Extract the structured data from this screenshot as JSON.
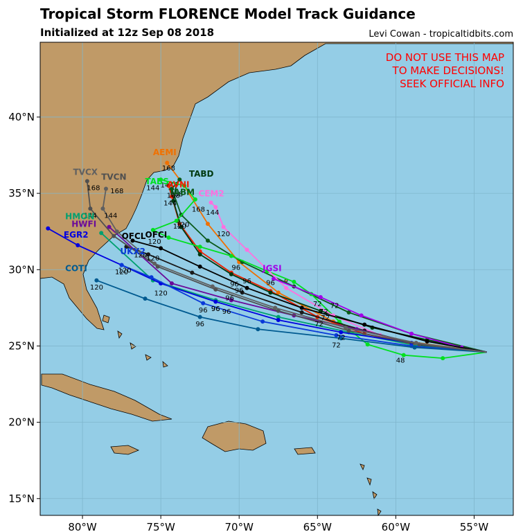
{
  "header": {
    "title": "Tropical Storm FLORENCE Model Track Guidance",
    "subtitle": "Initialized at 12z Sep 08 2018",
    "credit": "Levi Cowan - tropicaltidbits.com"
  },
  "warning": [
    "DO NOT USE THIS MAP",
    "TO MAKE DECISIONS!",
    "SEEK OFFICIAL INFO"
  ],
  "axes": {
    "lat_labels": [
      "40°N",
      "35°N",
      "30°N",
      "25°N",
      "20°N",
      "15°N"
    ],
    "lon_labels": [
      "80°W",
      "75°W",
      "70°W",
      "65°W",
      "60°W",
      "55°W"
    ]
  },
  "colors": {
    "ocean": "#94cde6",
    "land": "#c09a67",
    "grid": "#7fb6cc",
    "warning": "#ff0000"
  },
  "chart_data": {
    "type": "map-tracks",
    "lon_range": [
      -82.7,
      -52.5
    ],
    "lat_range": [
      13.9,
      44.9
    ],
    "grid": true,
    "tracks": [
      {
        "name": "AEMI",
        "color": "#f07000",
        "points": [
          [
            -54.2,
            24.6
          ],
          [
            -60,
            25.4
          ],
          [
            -64,
            26.6
          ],
          [
            -67.5,
            28.5
          ],
          [
            -70,
            30.5
          ],
          [
            -72,
            33.0
          ],
          [
            -73.5,
            35.5
          ],
          [
            -74.6,
            37.0
          ]
        ],
        "hour_labels": [
          [
            "168",
            -74.5,
            36.5
          ]
        ]
      },
      {
        "name": "AVNI",
        "color": "#ee2000",
        "points": [
          [
            -54.2,
            24.6
          ],
          [
            -58.5,
            25.0
          ],
          [
            -62,
            25.8
          ],
          [
            -65,
            26.9
          ],
          [
            -68,
            28.6
          ],
          [
            -70.5,
            29.8
          ],
          [
            -72.5,
            31.2
          ],
          [
            -73.8,
            33.0
          ],
          [
            -74.3,
            34.8
          ],
          [
            -74.5,
            35.5
          ]
        ],
        "hour_labels": [
          [
            "72",
            -64.6,
            27.1
          ],
          [
            "96",
            -70.3,
            28.9
          ],
          [
            "120",
            -73.8,
            32.7
          ],
          [
            "144",
            -74.4,
            34.2
          ],
          [
            "168",
            -74.2,
            34.7
          ]
        ]
      },
      {
        "name": "TABD",
        "color": "#003a10",
        "points": [
          [
            -54.2,
            24.6
          ],
          [
            -58.0,
            25.4
          ],
          [
            -61.5,
            26.2
          ],
          [
            -64.8,
            27.3
          ],
          [
            -68.0,
            28.5
          ],
          [
            -70.5,
            29.7
          ],
          [
            -72.5,
            31.0
          ],
          [
            -73.7,
            32.8
          ],
          [
            -74.2,
            34.5
          ],
          [
            -74.0,
            35.6
          ]
        ],
        "hour_labels": [
          [
            "72",
            -63.9,
            27.5
          ],
          [
            "96",
            -69.5,
            29.1
          ],
          [
            "120",
            -73.6,
            32.8
          ],
          [
            "168",
            -74.0,
            34.8
          ]
        ]
      },
      {
        "name": "TABM",
        "color": "#0a5a1a",
        "points": [
          [
            -54.2,
            24.6
          ],
          [
            -59,
            25.8
          ],
          [
            -63,
            27.2
          ],
          [
            -66.5,
            28.9
          ],
          [
            -69.8,
            30.5
          ],
          [
            -72.0,
            31.9
          ],
          [
            -73.7,
            33.6
          ],
          [
            -74.3,
            35.3
          ],
          [
            -73.8,
            35.9
          ]
        ],
        "hour_labels": [
          [
            "96",
            -70.2,
            30.0
          ],
          [
            "144",
            -74.6,
            35.4
          ]
        ]
      },
      {
        "name": "TABS",
        "color": "#00e020",
        "points": [
          [
            -54.2,
            24.6
          ],
          [
            -57,
            24.2
          ],
          [
            -59.5,
            24.4
          ],
          [
            -61.8,
            25.1
          ],
          [
            -63.6,
            26.6
          ],
          [
            -65.4,
            28.4
          ],
          [
            -66.5,
            29.2
          ],
          [
            -68.2,
            29.9
          ],
          [
            -70.5,
            30.9
          ],
          [
            -72.5,
            31.5
          ],
          [
            -74.5,
            32.1
          ],
          [
            -75.5,
            32.6
          ],
          [
            -74.0,
            33.2
          ],
          [
            -72.8,
            34.6
          ],
          [
            -73.5,
            35.5
          ],
          [
            -75.0,
            35.9
          ]
        ],
        "hour_labels": [
          [
            "48",
            -59.7,
            23.9
          ],
          [
            "120",
            -75.4,
            31.7
          ],
          [
            "144",
            -75.5,
            35.2
          ]
        ]
      },
      {
        "name": "CEM2",
        "color": "#ff70e0",
        "points": [
          [
            -54.2,
            24.6
          ],
          [
            -57.5,
            24.9
          ],
          [
            -61.0,
            25.7
          ],
          [
            -64.0,
            27.0
          ],
          [
            -67.0,
            28.8
          ],
          [
            -69.5,
            31.3
          ],
          [
            -71.0,
            32.8
          ],
          [
            -71.5,
            34.1
          ],
          [
            -71.8,
            34.4
          ]
        ],
        "hour_labels": [
          [
            "144",
            -71.7,
            33.6
          ],
          [
            "168",
            -72.6,
            33.8
          ],
          [
            "120",
            -71.0,
            32.2
          ]
        ]
      },
      {
        "name": "JGSI",
        "color": "#a000e8",
        "points": [
          [
            -54.2,
            24.6
          ],
          [
            -55.8,
            24.9
          ],
          [
            -59,
            25.8
          ],
          [
            -62.2,
            27.0
          ],
          [
            -64.8,
            28.2
          ],
          [
            -67.8,
            29.4
          ]
        ],
        "hour_labels": [
          [
            "72",
            -65.0,
            27.6
          ],
          [
            "96",
            -68.0,
            29.0
          ]
        ]
      },
      {
        "name": "OFCI",
        "color": "#000000",
        "points": [
          [
            -54.2,
            24.6
          ],
          [
            -58,
            25.3
          ],
          [
            -62,
            26.4
          ],
          [
            -66,
            27.5
          ],
          [
            -69.5,
            28.8
          ],
          [
            -72.5,
            30.2
          ],
          [
            -75,
            31.4
          ],
          [
            -76.8,
            31.9
          ]
        ],
        "hour_labels": [
          [
            "72",
            -64.5,
            26.7
          ],
          [
            "96",
            -70.0,
            28.5
          ],
          [
            "120",
            -75.5,
            30.6
          ]
        ]
      },
      {
        "name": "OFCL",
        "color": "#1a1a1a",
        "points": [
          [
            -54.2,
            24.6
          ],
          [
            -58.2,
            25.0
          ],
          [
            -62,
            26.0
          ],
          [
            -66,
            27.2
          ],
          [
            -69.8,
            28.5
          ],
          [
            -73,
            29.8
          ],
          [
            -75.8,
            31.0
          ],
          [
            -77.2,
            31.5
          ]
        ],
        "hour_labels": [
          [
            "72",
            -64.9,
            26.3
          ],
          [
            "96",
            -70.6,
            28.0
          ],
          [
            "120",
            -76.3,
            30.8
          ]
        ]
      },
      {
        "name": "HWFI",
        "color": "#6a0a9a",
        "points": [
          [
            -54.2,
            24.6
          ],
          [
            -58.5,
            25.1
          ],
          [
            -62.5,
            26.1
          ],
          [
            -66.5,
            27.0
          ],
          [
            -70.5,
            28.0
          ],
          [
            -74.3,
            29.1
          ],
          [
            -78.3,
            32.8
          ]
        ],
        "hour_labels": [
          [
            "96",
            -70.8,
            27.1
          ],
          [
            "120",
            -75.0,
            28.3
          ]
        ]
      },
      {
        "name": "HMON",
        "color": "#00a070",
        "points": [
          [
            -54.2,
            24.6
          ],
          [
            -58.6,
            25.0
          ],
          [
            -63,
            25.9
          ],
          [
            -67.5,
            26.9
          ],
          [
            -71.5,
            28.0
          ],
          [
            -75.5,
            29.3
          ],
          [
            -78.8,
            32.4
          ]
        ],
        "hour_labels": [
          [
            "72",
            -63.5,
            25.4
          ],
          [
            "96",
            -71.5,
            27.3
          ]
        ]
      },
      {
        "name": "EGR2",
        "color": "#0000e0",
        "points": [
          [
            -54.2,
            24.6
          ],
          [
            -59.0,
            25.2
          ],
          [
            -63.5,
            25.9
          ],
          [
            -67.5,
            26.7
          ],
          [
            -71.5,
            27.9
          ],
          [
            -75.0,
            29.1
          ],
          [
            -77.5,
            30.3
          ],
          [
            -80.3,
            31.6
          ],
          [
            -82.2,
            32.7
          ]
        ],
        "hour_labels": [
          [
            "96",
            -71.5,
            27.3
          ],
          [
            "120",
            -77.3,
            29.8
          ]
        ]
      },
      {
        "name": "UKX2",
        "color": "#0a3ad8",
        "points": [
          [
            -54.2,
            24.6
          ],
          [
            -59.0,
            25.0
          ],
          [
            -63.8,
            25.7
          ],
          [
            -68.5,
            26.6
          ],
          [
            -72.3,
            27.8
          ],
          [
            -75.6,
            29.5
          ],
          [
            -77.5,
            30.3
          ]
        ],
        "hour_labels": [
          [
            "96",
            -72.3,
            27.2
          ],
          [
            "120",
            -77.5,
            29.7
          ]
        ]
      },
      {
        "name": "COTI",
        "color": "#005a90",
        "points": [
          [
            -54.2,
            24.6
          ],
          [
            -58.8,
            24.9
          ],
          [
            -63.5,
            25.5
          ],
          [
            -68.8,
            26.1
          ],
          [
            -72.5,
            26.9
          ],
          [
            -76.0,
            28.1
          ],
          [
            -79.1,
            29.3
          ]
        ],
        "hour_labels": [
          [
            "72",
            -63.8,
            24.9
          ],
          [
            "96",
            -72.5,
            26.3
          ],
          [
            "120",
            -79.1,
            28.7
          ]
        ]
      },
      {
        "name": "TVCN",
        "color": "#505050",
        "points": [
          [
            -54.2,
            24.6
          ],
          [
            -58.5,
            25.1
          ],
          [
            -63,
            26.0
          ],
          [
            -67.5,
            27.3
          ],
          [
            -71.5,
            28.7
          ],
          [
            -75.2,
            30.2
          ],
          [
            -78.0,
            32.2
          ],
          [
            -79.5,
            34.0
          ],
          [
            -79.7,
            35.8
          ]
        ],
        "hour_labels": [
          [
            "144",
            -79.5,
            33.4
          ],
          [
            "168",
            -79.3,
            35.2
          ]
        ]
      },
      {
        "name": "TVCX",
        "color": "#606060",
        "points": [
          [
            -54.2,
            24.6
          ],
          [
            -58.7,
            25.2
          ],
          [
            -63.2,
            26.2
          ],
          [
            -67.7,
            27.5
          ],
          [
            -71.7,
            28.9
          ],
          [
            -75.4,
            30.4
          ],
          [
            -77.8,
            32.5
          ],
          [
            -78.7,
            34.0
          ],
          [
            -78.5,
            35.3
          ]
        ],
        "hour_labels": [
          [
            "144",
            -78.2,
            33.4
          ],
          [
            "168",
            -77.8,
            35.0
          ]
        ]
      }
    ],
    "model_labels": [
      {
        "text": "AEMI",
        "lon": -75.5,
        "lat": 37.5,
        "color": "#f07000"
      },
      {
        "text": "TABD",
        "lon": -73.2,
        "lat": 36.1,
        "color": "#003a10"
      },
      {
        "text": "AVNI",
        "lon": -74.6,
        "lat": 35.4,
        "color": "#ee2000"
      },
      {
        "text": "TABM",
        "lon": -74.5,
        "lat": 34.9,
        "color": "#0a5a1a"
      },
      {
        "text": "TABS",
        "lon": -76.0,
        "lat": 35.6,
        "color": "#00e020"
      },
      {
        "text": "CEM2",
        "lon": -72.6,
        "lat": 34.8,
        "color": "#ff70e0"
      },
      {
        "text": "TVCX",
        "lon": -80.6,
        "lat": 36.2,
        "color": "#606060"
      },
      {
        "text": "TVCN",
        "lon": -78.8,
        "lat": 35.9,
        "color": "#505050"
      },
      {
        "text": "HMON",
        "lon": -81.1,
        "lat": 33.3,
        "color": "#00a070"
      },
      {
        "text": "HWFI",
        "lon": -80.7,
        "lat": 32.8,
        "color": "#6a0a9a"
      },
      {
        "text": "EGR2",
        "lon": -81.2,
        "lat": 32.1,
        "color": "#0000e0"
      },
      {
        "text": "OFCL",
        "lon": -77.5,
        "lat": 32.0,
        "color": "#000000"
      },
      {
        "text": "OFCI",
        "lon": -76.0,
        "lat": 32.1,
        "color": "#000000"
      },
      {
        "text": "UKX2",
        "lon": -77.6,
        "lat": 31.0,
        "color": "#0a3ad8"
      },
      {
        "text": "COTI",
        "lon": -81.1,
        "lat": 29.9,
        "color": "#005a90"
      },
      {
        "text": "JGSI",
        "lon": -68.5,
        "lat": 29.9,
        "color": "#a000e8"
      }
    ]
  }
}
